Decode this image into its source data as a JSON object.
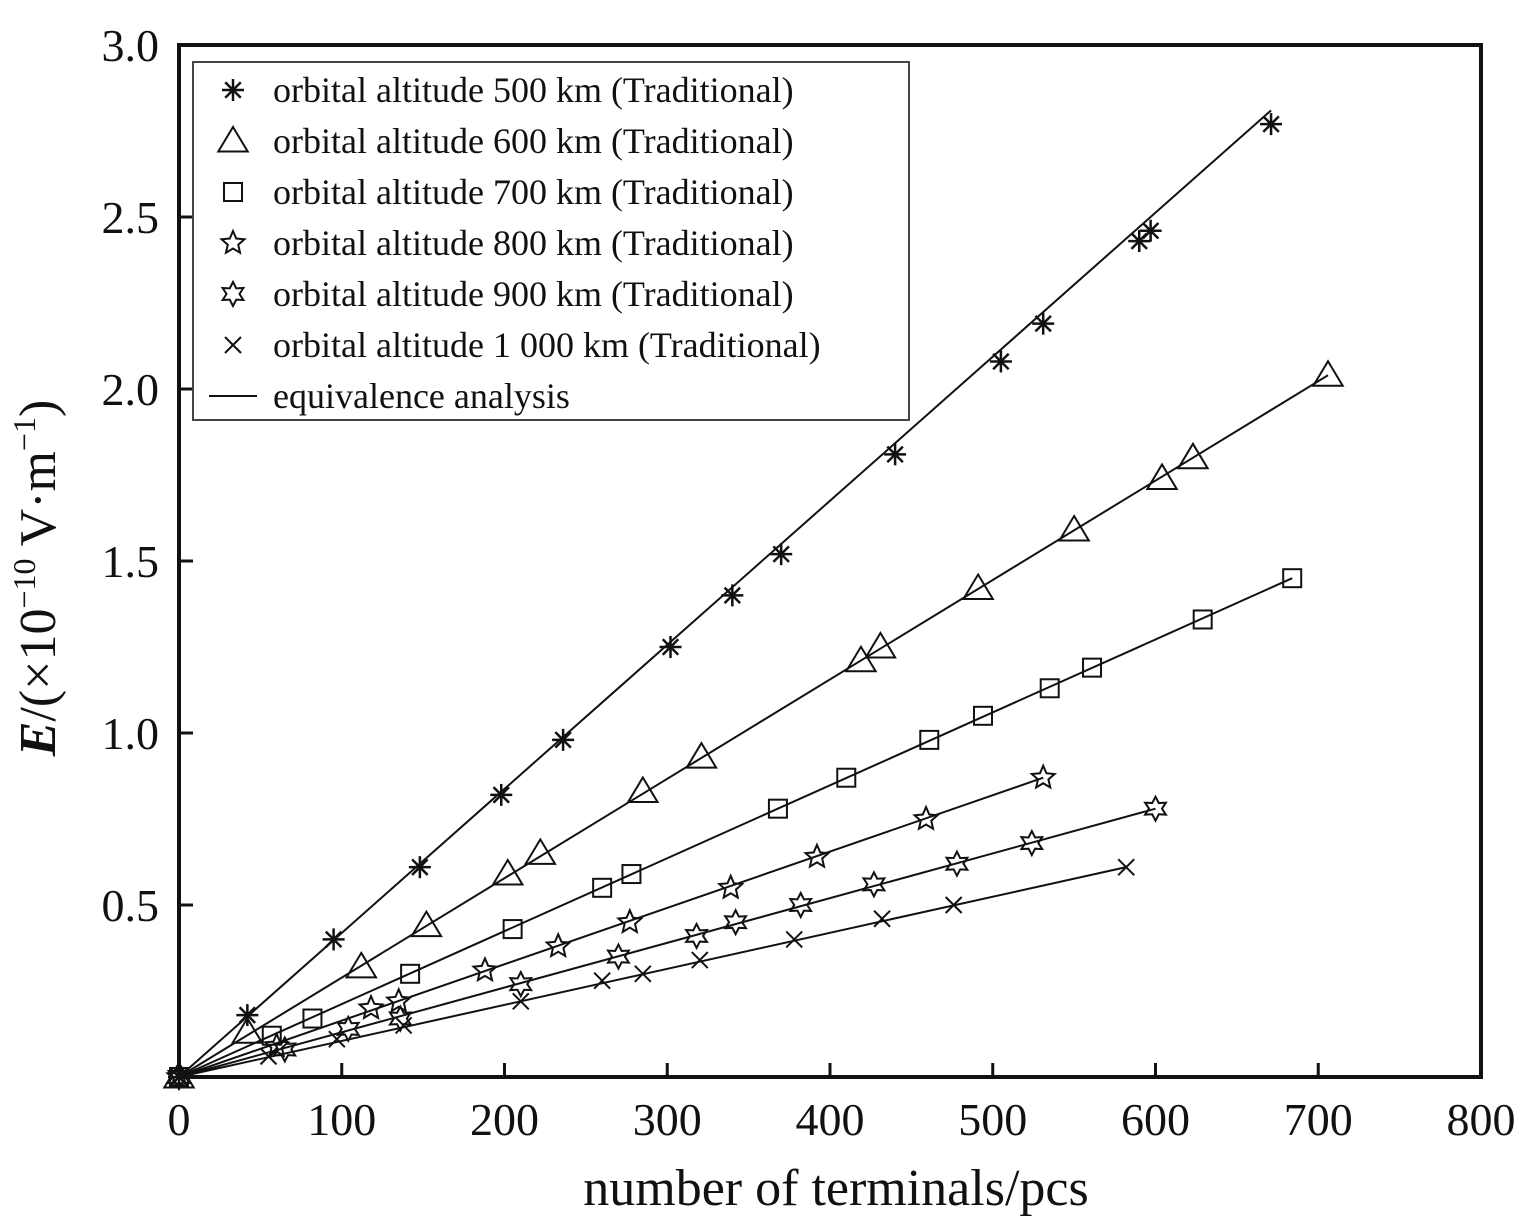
{
  "chart_data": {
    "type": "scatter",
    "xlabel": "number of terminals/pcs",
    "ylabel_main": "E",
    "ylabel_rest": "/(×10",
    "ylabel_exp": "−10",
    "ylabel_unit": " V·m",
    "ylabel_unit_exp": "−1",
    "ylabel_close": ")",
    "xlim": [
      0,
      800
    ],
    "ylim": [
      0,
      3.0
    ],
    "x_ticks": [
      0,
      100,
      200,
      300,
      400,
      500,
      600,
      700,
      800
    ],
    "x_tick_labels": [
      "0",
      "100",
      "200",
      "300",
      "400",
      "500",
      "600",
      "700",
      "800"
    ],
    "y_ticks": [
      0.5,
      1.0,
      1.5,
      2.0,
      2.5,
      3.0
    ],
    "y_tick_labels": [
      "0.5",
      "1.0",
      "1.5",
      "2.0",
      "2.5",
      "3.0"
    ],
    "grid": false,
    "legend_position": "top-left",
    "series": [
      {
        "name": "orbital altitude 500 km (Traditional)",
        "marker": "asterisk",
        "x": [
          0,
          42,
          95,
          148,
          198,
          236,
          302,
          340,
          370,
          440,
          505,
          531,
          590,
          597,
          671
        ],
        "y": [
          0,
          0.18,
          0.4,
          0.61,
          0.82,
          0.98,
          1.25,
          1.4,
          1.52,
          1.81,
          2.08,
          2.19,
          2.43,
          2.46,
          2.77
        ],
        "fit": [
          [
            0,
            0
          ],
          [
            671,
            2.81
          ]
        ]
      },
      {
        "name": "orbital altitude 600 km (Traditional)",
        "marker": "triangle",
        "x": [
          0,
          42,
          112,
          152,
          202,
          222,
          285,
          321,
          419,
          431,
          491,
          550,
          604,
          623,
          706
        ],
        "y": [
          0,
          0.13,
          0.32,
          0.44,
          0.59,
          0.65,
          0.83,
          0.93,
          1.21,
          1.25,
          1.42,
          1.59,
          1.74,
          1.8,
          2.04
        ],
        "fit": [
          [
            0,
            0
          ],
          [
            706,
            2.04
          ]
        ]
      },
      {
        "name": "orbital altitude 700 km (Traditional)",
        "marker": "square",
        "x": [
          0,
          57,
          82,
          142,
          205,
          260,
          278,
          368,
          410,
          461,
          494,
          535,
          561,
          629,
          684
        ],
        "y": [
          0,
          0.12,
          0.17,
          0.3,
          0.43,
          0.55,
          0.59,
          0.78,
          0.87,
          0.98,
          1.05,
          1.13,
          1.19,
          1.33,
          1.45
        ],
        "fit": [
          [
            0,
            0
          ],
          [
            684,
            1.45
          ]
        ]
      },
      {
        "name": "orbital altitude 800 km (Traditional)",
        "marker": "star5",
        "x": [
          0,
          60,
          118,
          135,
          188,
          233,
          277,
          339,
          392,
          459,
          531
        ],
        "y": [
          0,
          0.09,
          0.2,
          0.22,
          0.31,
          0.38,
          0.45,
          0.55,
          0.64,
          0.75,
          0.87
        ],
        "fit": [
          [
            0,
            0
          ],
          [
            531,
            0.87
          ]
        ]
      },
      {
        "name": "orbital altitude 900 km (Traditional)",
        "marker": "star6",
        "x": [
          0,
          65,
          104,
          136,
          210,
          270,
          318,
          342,
          382,
          427,
          478,
          524,
          600
        ],
        "y": [
          0,
          0.08,
          0.14,
          0.17,
          0.27,
          0.35,
          0.41,
          0.45,
          0.5,
          0.56,
          0.62,
          0.68,
          0.78
        ],
        "fit": [
          [
            0,
            0
          ],
          [
            600,
            0.78
          ]
        ]
      },
      {
        "name": "orbital altitude 1 000 km (Traditional)",
        "marker": "cross",
        "x": [
          0,
          55,
          97,
          138,
          210,
          260,
          285,
          320,
          378,
          432,
          476,
          582
        ],
        "y": [
          0,
          0.06,
          0.11,
          0.15,
          0.22,
          0.28,
          0.3,
          0.34,
          0.4,
          0.46,
          0.5,
          0.61
        ],
        "fit": [
          [
            0,
            0
          ],
          [
            582,
            0.61
          ]
        ]
      }
    ],
    "legend": [
      {
        "label": "orbital altitude 500 km (Traditional)",
        "marker": "asterisk"
      },
      {
        "label": "orbital altitude 600 km (Traditional)",
        "marker": "triangle"
      },
      {
        "label": "orbital altitude 700 km (Traditional)",
        "marker": "square"
      },
      {
        "label": "orbital altitude 800 km (Traditional)",
        "marker": "star5"
      },
      {
        "label": "orbital altitude 900 km (Traditional)",
        "marker": "star6"
      },
      {
        "label": "orbital altitude 1 000 km (Traditional)",
        "marker": "cross"
      },
      {
        "label": "equivalence analysis",
        "marker": "line"
      }
    ]
  }
}
